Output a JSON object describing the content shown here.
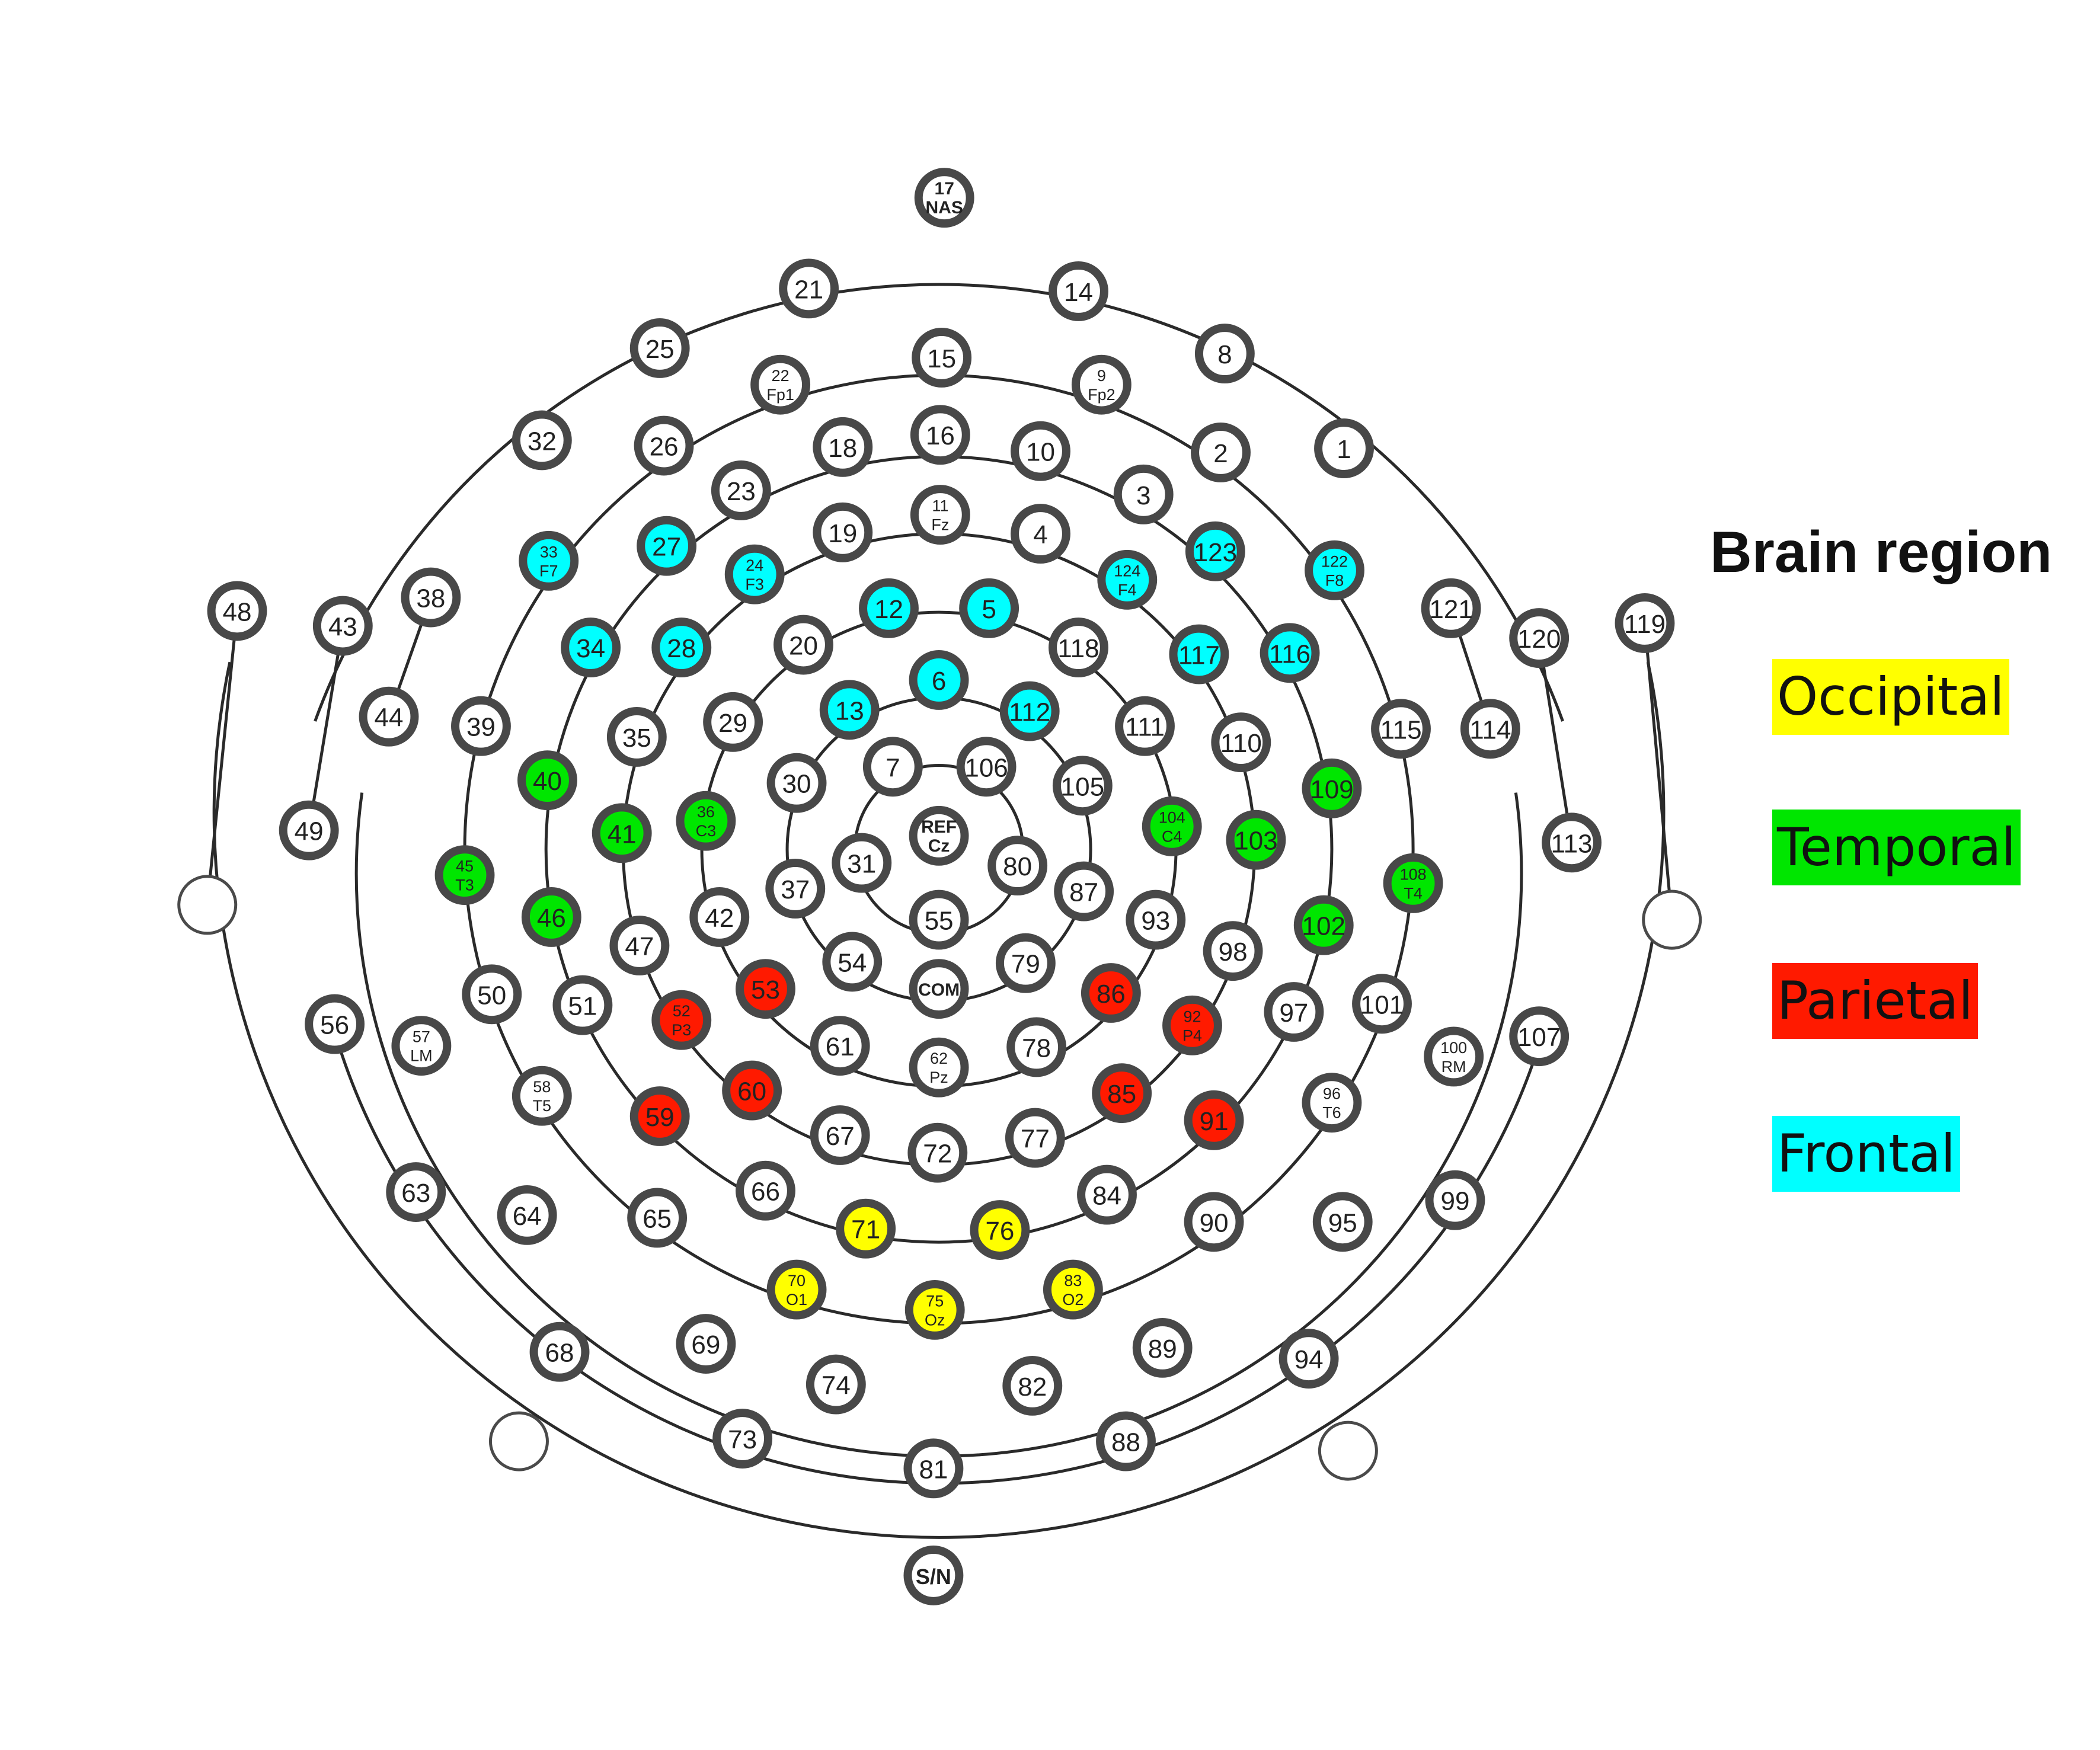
{
  "legend": {
    "title": "Brain region",
    "items": [
      {
        "label": "Occipital",
        "color": "#ffff00"
      },
      {
        "label": "Temporal",
        "color": "#00e600"
      },
      {
        "label": "Parietal",
        "color": "#ff1a00"
      },
      {
        "label": "Frontal",
        "color": "#00ffff"
      }
    ]
  },
  "region_colors": {
    "O": "#ffff00",
    "T": "#00e600",
    "P": "#ff1a00",
    "F": "#00ffff",
    "none": "#ffffff"
  },
  "electrodes": [
    {
      "id": "17",
      "sub": "NAS",
      "region": "none"
    },
    {
      "id": "21",
      "region": "none"
    },
    {
      "id": "14",
      "region": "none"
    },
    {
      "id": "25",
      "region": "none"
    },
    {
      "id": "8",
      "region": "none"
    },
    {
      "id": "15",
      "region": "none"
    },
    {
      "id": "22",
      "sub": "Fp1",
      "region": "none"
    },
    {
      "id": "9",
      "sub": "Fp2",
      "region": "none"
    },
    {
      "id": "32",
      "region": "none"
    },
    {
      "id": "26",
      "region": "none"
    },
    {
      "id": "18",
      "region": "none"
    },
    {
      "id": "16",
      "region": "none"
    },
    {
      "id": "10",
      "region": "none"
    },
    {
      "id": "2",
      "region": "none"
    },
    {
      "id": "1",
      "region": "none"
    },
    {
      "id": "23",
      "region": "none"
    },
    {
      "id": "3",
      "region": "none"
    },
    {
      "id": "19",
      "region": "none"
    },
    {
      "id": "11",
      "sub": "Fz",
      "region": "none"
    },
    {
      "id": "4",
      "region": "none"
    },
    {
      "id": "33",
      "sub": "F7",
      "region": "F"
    },
    {
      "id": "27",
      "region": "F"
    },
    {
      "id": "24",
      "sub": "F3",
      "region": "F"
    },
    {
      "id": "124",
      "sub": "F4",
      "region": "F"
    },
    {
      "id": "123",
      "region": "F"
    },
    {
      "id": "122",
      "sub": "F8",
      "region": "F"
    },
    {
      "id": "48",
      "region": "none"
    },
    {
      "id": "43",
      "region": "none"
    },
    {
      "id": "38",
      "region": "none"
    },
    {
      "id": "121",
      "region": "none"
    },
    {
      "id": "120",
      "region": "none"
    },
    {
      "id": "119",
      "region": "none"
    },
    {
      "id": "12",
      "region": "F"
    },
    {
      "id": "5",
      "region": "F"
    },
    {
      "id": "34",
      "region": "F"
    },
    {
      "id": "28",
      "region": "F"
    },
    {
      "id": "20",
      "region": "none"
    },
    {
      "id": "118",
      "region": "none"
    },
    {
      "id": "117",
      "region": "F"
    },
    {
      "id": "116",
      "region": "F"
    },
    {
      "id": "6",
      "region": "F"
    },
    {
      "id": "44",
      "region": "none"
    },
    {
      "id": "39",
      "region": "none"
    },
    {
      "id": "35",
      "region": "none"
    },
    {
      "id": "29",
      "region": "none"
    },
    {
      "id": "13",
      "region": "F"
    },
    {
      "id": "112",
      "region": "F"
    },
    {
      "id": "111",
      "region": "none"
    },
    {
      "id": "110",
      "region": "none"
    },
    {
      "id": "115",
      "region": "none"
    },
    {
      "id": "114",
      "region": "none"
    },
    {
      "id": "7",
      "region": "none"
    },
    {
      "id": "106",
      "region": "none"
    },
    {
      "id": "40",
      "region": "T"
    },
    {
      "id": "30",
      "region": "none"
    },
    {
      "id": "105",
      "region": "none"
    },
    {
      "id": "109",
      "region": "T"
    },
    {
      "id": "49",
      "region": "none"
    },
    {
      "id": "41",
      "region": "T"
    },
    {
      "id": "36",
      "sub": "C3",
      "region": "T"
    },
    {
      "id": "REF",
      "sub": "Cz",
      "region": "none"
    },
    {
      "id": "104",
      "sub": "C4",
      "region": "T"
    },
    {
      "id": "103",
      "region": "T"
    },
    {
      "id": "113",
      "region": "none"
    },
    {
      "id": "45",
      "sub": "T3",
      "region": "T"
    },
    {
      "id": "31",
      "region": "none"
    },
    {
      "id": "80",
      "region": "none"
    },
    {
      "id": "108",
      "sub": "T4",
      "region": "T"
    },
    {
      "id": "37",
      "region": "none"
    },
    {
      "id": "87",
      "region": "none"
    },
    {
      "id": "46",
      "region": "T"
    },
    {
      "id": "42",
      "region": "none"
    },
    {
      "id": "55",
      "region": "none"
    },
    {
      "id": "93",
      "region": "none"
    },
    {
      "id": "102",
      "region": "T"
    },
    {
      "id": "47",
      "region": "none"
    },
    {
      "id": "98",
      "region": "none"
    },
    {
      "id": "54",
      "region": "none"
    },
    {
      "id": "79",
      "region": "none"
    },
    {
      "id": "COM",
      "region": "none"
    },
    {
      "id": "53",
      "region": "P"
    },
    {
      "id": "86",
      "region": "P"
    },
    {
      "id": "50",
      "region": "none"
    },
    {
      "id": "51",
      "region": "none"
    },
    {
      "id": "97",
      "region": "none"
    },
    {
      "id": "101",
      "region": "none"
    },
    {
      "id": "52",
      "sub": "P3",
      "region": "P"
    },
    {
      "id": "92",
      "sub": "P4",
      "region": "P"
    },
    {
      "id": "56",
      "region": "none"
    },
    {
      "id": "57",
      "sub": "LM",
      "region": "none"
    },
    {
      "id": "61",
      "region": "none"
    },
    {
      "id": "78",
      "region": "none"
    },
    {
      "id": "62",
      "sub": "Pz",
      "region": "none"
    },
    {
      "id": "107",
      "region": "none"
    },
    {
      "id": "100",
      "sub": "RM",
      "region": "none"
    },
    {
      "id": "58",
      "sub": "T5",
      "region": "none"
    },
    {
      "id": "60",
      "region": "P"
    },
    {
      "id": "85",
      "region": "P"
    },
    {
      "id": "96",
      "sub": "T6",
      "region": "none"
    },
    {
      "id": "59",
      "region": "P"
    },
    {
      "id": "91",
      "region": "P"
    },
    {
      "id": "67",
      "region": "none"
    },
    {
      "id": "77",
      "region": "none"
    },
    {
      "id": "72",
      "region": "none"
    },
    {
      "id": "63",
      "region": "none"
    },
    {
      "id": "66",
      "region": "none"
    },
    {
      "id": "84",
      "region": "none"
    },
    {
      "id": "99",
      "region": "none"
    },
    {
      "id": "64",
      "region": "none"
    },
    {
      "id": "65",
      "region": "none"
    },
    {
      "id": "71",
      "region": "O"
    },
    {
      "id": "76",
      "region": "O"
    },
    {
      "id": "90",
      "region": "none"
    },
    {
      "id": "95",
      "region": "none"
    },
    {
      "id": "70",
      "sub": "O1",
      "region": "O"
    },
    {
      "id": "83",
      "sub": "O2",
      "region": "O"
    },
    {
      "id": "75",
      "sub": "Oz",
      "region": "O"
    },
    {
      "id": "68",
      "region": "none"
    },
    {
      "id": "69",
      "region": "none"
    },
    {
      "id": "89",
      "region": "none"
    },
    {
      "id": "94",
      "region": "none"
    },
    {
      "id": "74",
      "region": "none"
    },
    {
      "id": "82",
      "region": "none"
    },
    {
      "id": "73",
      "region": "none"
    },
    {
      "id": "88",
      "region": "none"
    },
    {
      "id": "81",
      "region": "none"
    },
    {
      "id": "S/N",
      "region": "none"
    }
  ]
}
